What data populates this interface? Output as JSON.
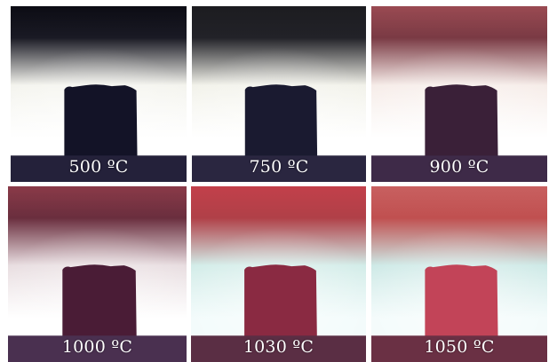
{
  "figure": {
    "panels": [
      {
        "label": "500 ºC",
        "top": "#0c0c14",
        "mid": "#f4f4ee",
        "bottom": "#ffffff",
        "sample": "#131327",
        "base": "#24213a",
        "rim": "#1a1a24"
      },
      {
        "label": "750 ºC",
        "top": "#1c1c20",
        "mid": "#f2f2ea",
        "bottom": "#ffffff",
        "sample": "#1a1a30",
        "base": "#2a2640",
        "rim": "#222228"
      },
      {
        "label": "900 ºC",
        "top": "#9a4a52",
        "mid": "#f6ece8",
        "bottom": "#ffffff",
        "sample": "#3a2038",
        "base": "#3e2a48",
        "rim": "#7a3a44"
      },
      {
        "label": "1000 ºC",
        "top": "#8a3a48",
        "mid": "#e8dde0",
        "bottom": "#ffffff",
        "sample": "#4a1c36",
        "base": "#4a3050",
        "rim": "#6a2e3e"
      },
      {
        "label": "1030 ºC",
        "top": "#c2404a",
        "mid": "#d2ece8",
        "bottom": "#f2fbfb",
        "sample": "#8a2a42",
        "base": "#5a2e44",
        "rim": "#b04048"
      },
      {
        "label": "1050 ºC",
        "top": "#c86060",
        "mid": "#cde9e6",
        "bottom": "#f3fbfb",
        "sample": "#c24458",
        "base": "#6a3044",
        "rim": "#c05050"
      }
    ]
  }
}
